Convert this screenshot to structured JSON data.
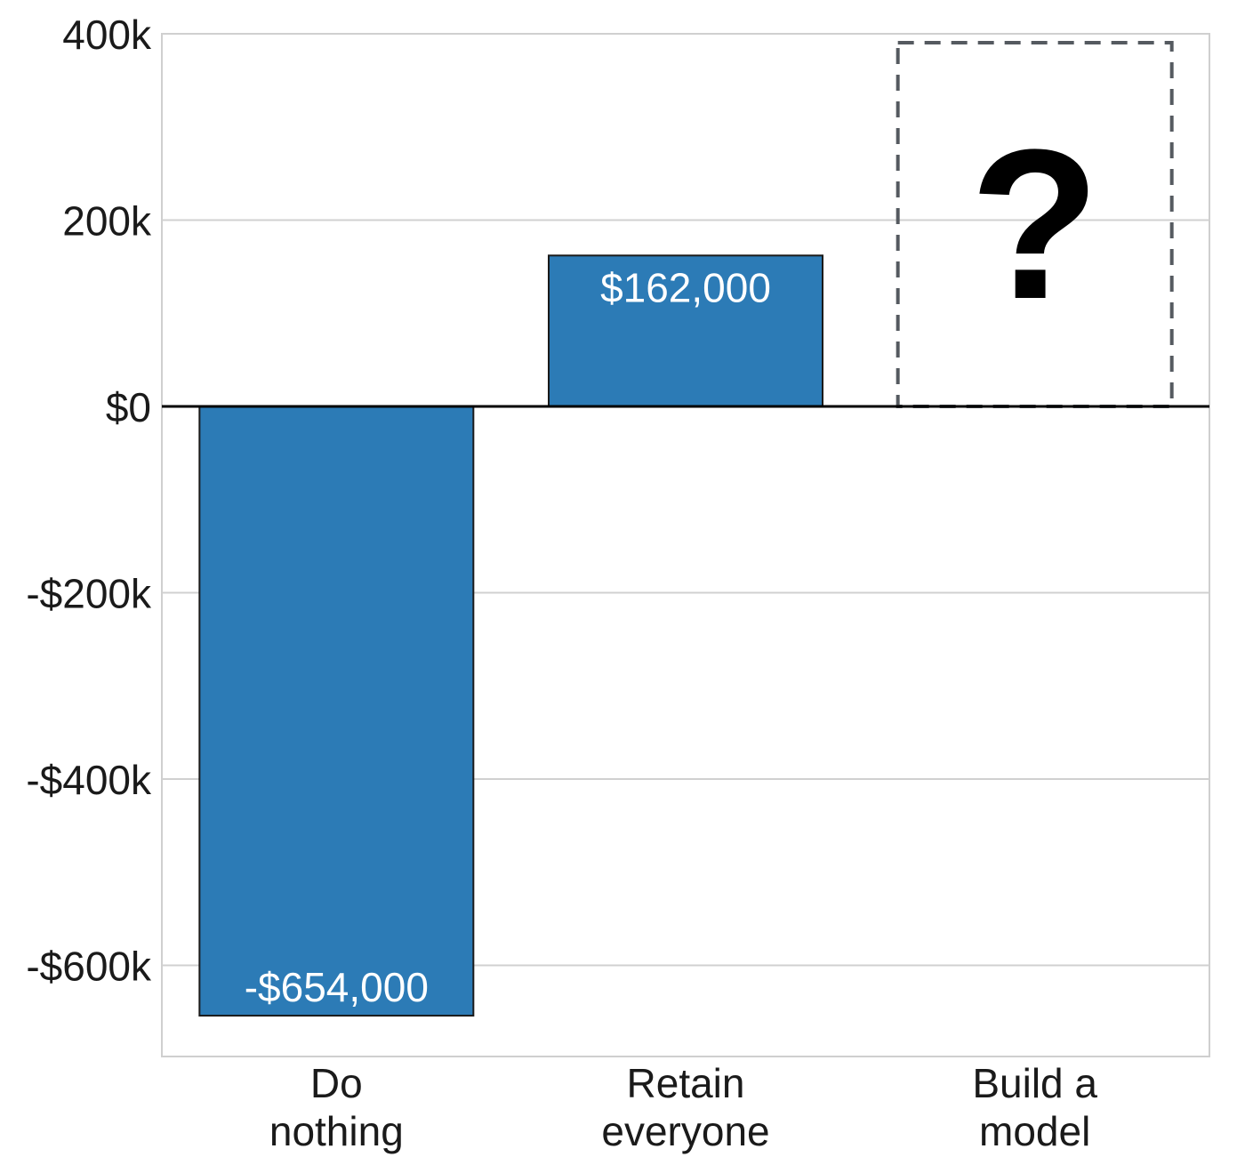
{
  "chart_data": {
    "type": "bar",
    "categories": [
      {
        "line1": "Do",
        "line2": "nothing"
      },
      {
        "line1": "Retain",
        "line2": "everyone"
      },
      {
        "line1": "Build a",
        "line2": "model"
      }
    ],
    "values": [
      -654000,
      162000,
      null
    ],
    "data_labels": [
      "-$654,000",
      "$162,000",
      ""
    ],
    "unknown_marker": "?",
    "ylim": [
      -700000,
      400000
    ],
    "yticks": [
      {
        "value": 400000,
        "label": "400k"
      },
      {
        "value": 200000,
        "label": "200k"
      },
      {
        "value": 0,
        "label": "$0"
      },
      {
        "value": -200000,
        "label": "-$200k"
      },
      {
        "value": -400000,
        "label": "-$400k"
      },
      {
        "value": -600000,
        "label": "-$600k"
      }
    ],
    "grid": true,
    "title": "",
    "xlabel": "",
    "ylabel": "",
    "colors": {
      "bar": "#2c7bb6",
      "bar_edge": "#1a1a1a",
      "grid": "#d0d0d0",
      "zero_line": "#000000",
      "dashed_box": "#555a60"
    }
  }
}
